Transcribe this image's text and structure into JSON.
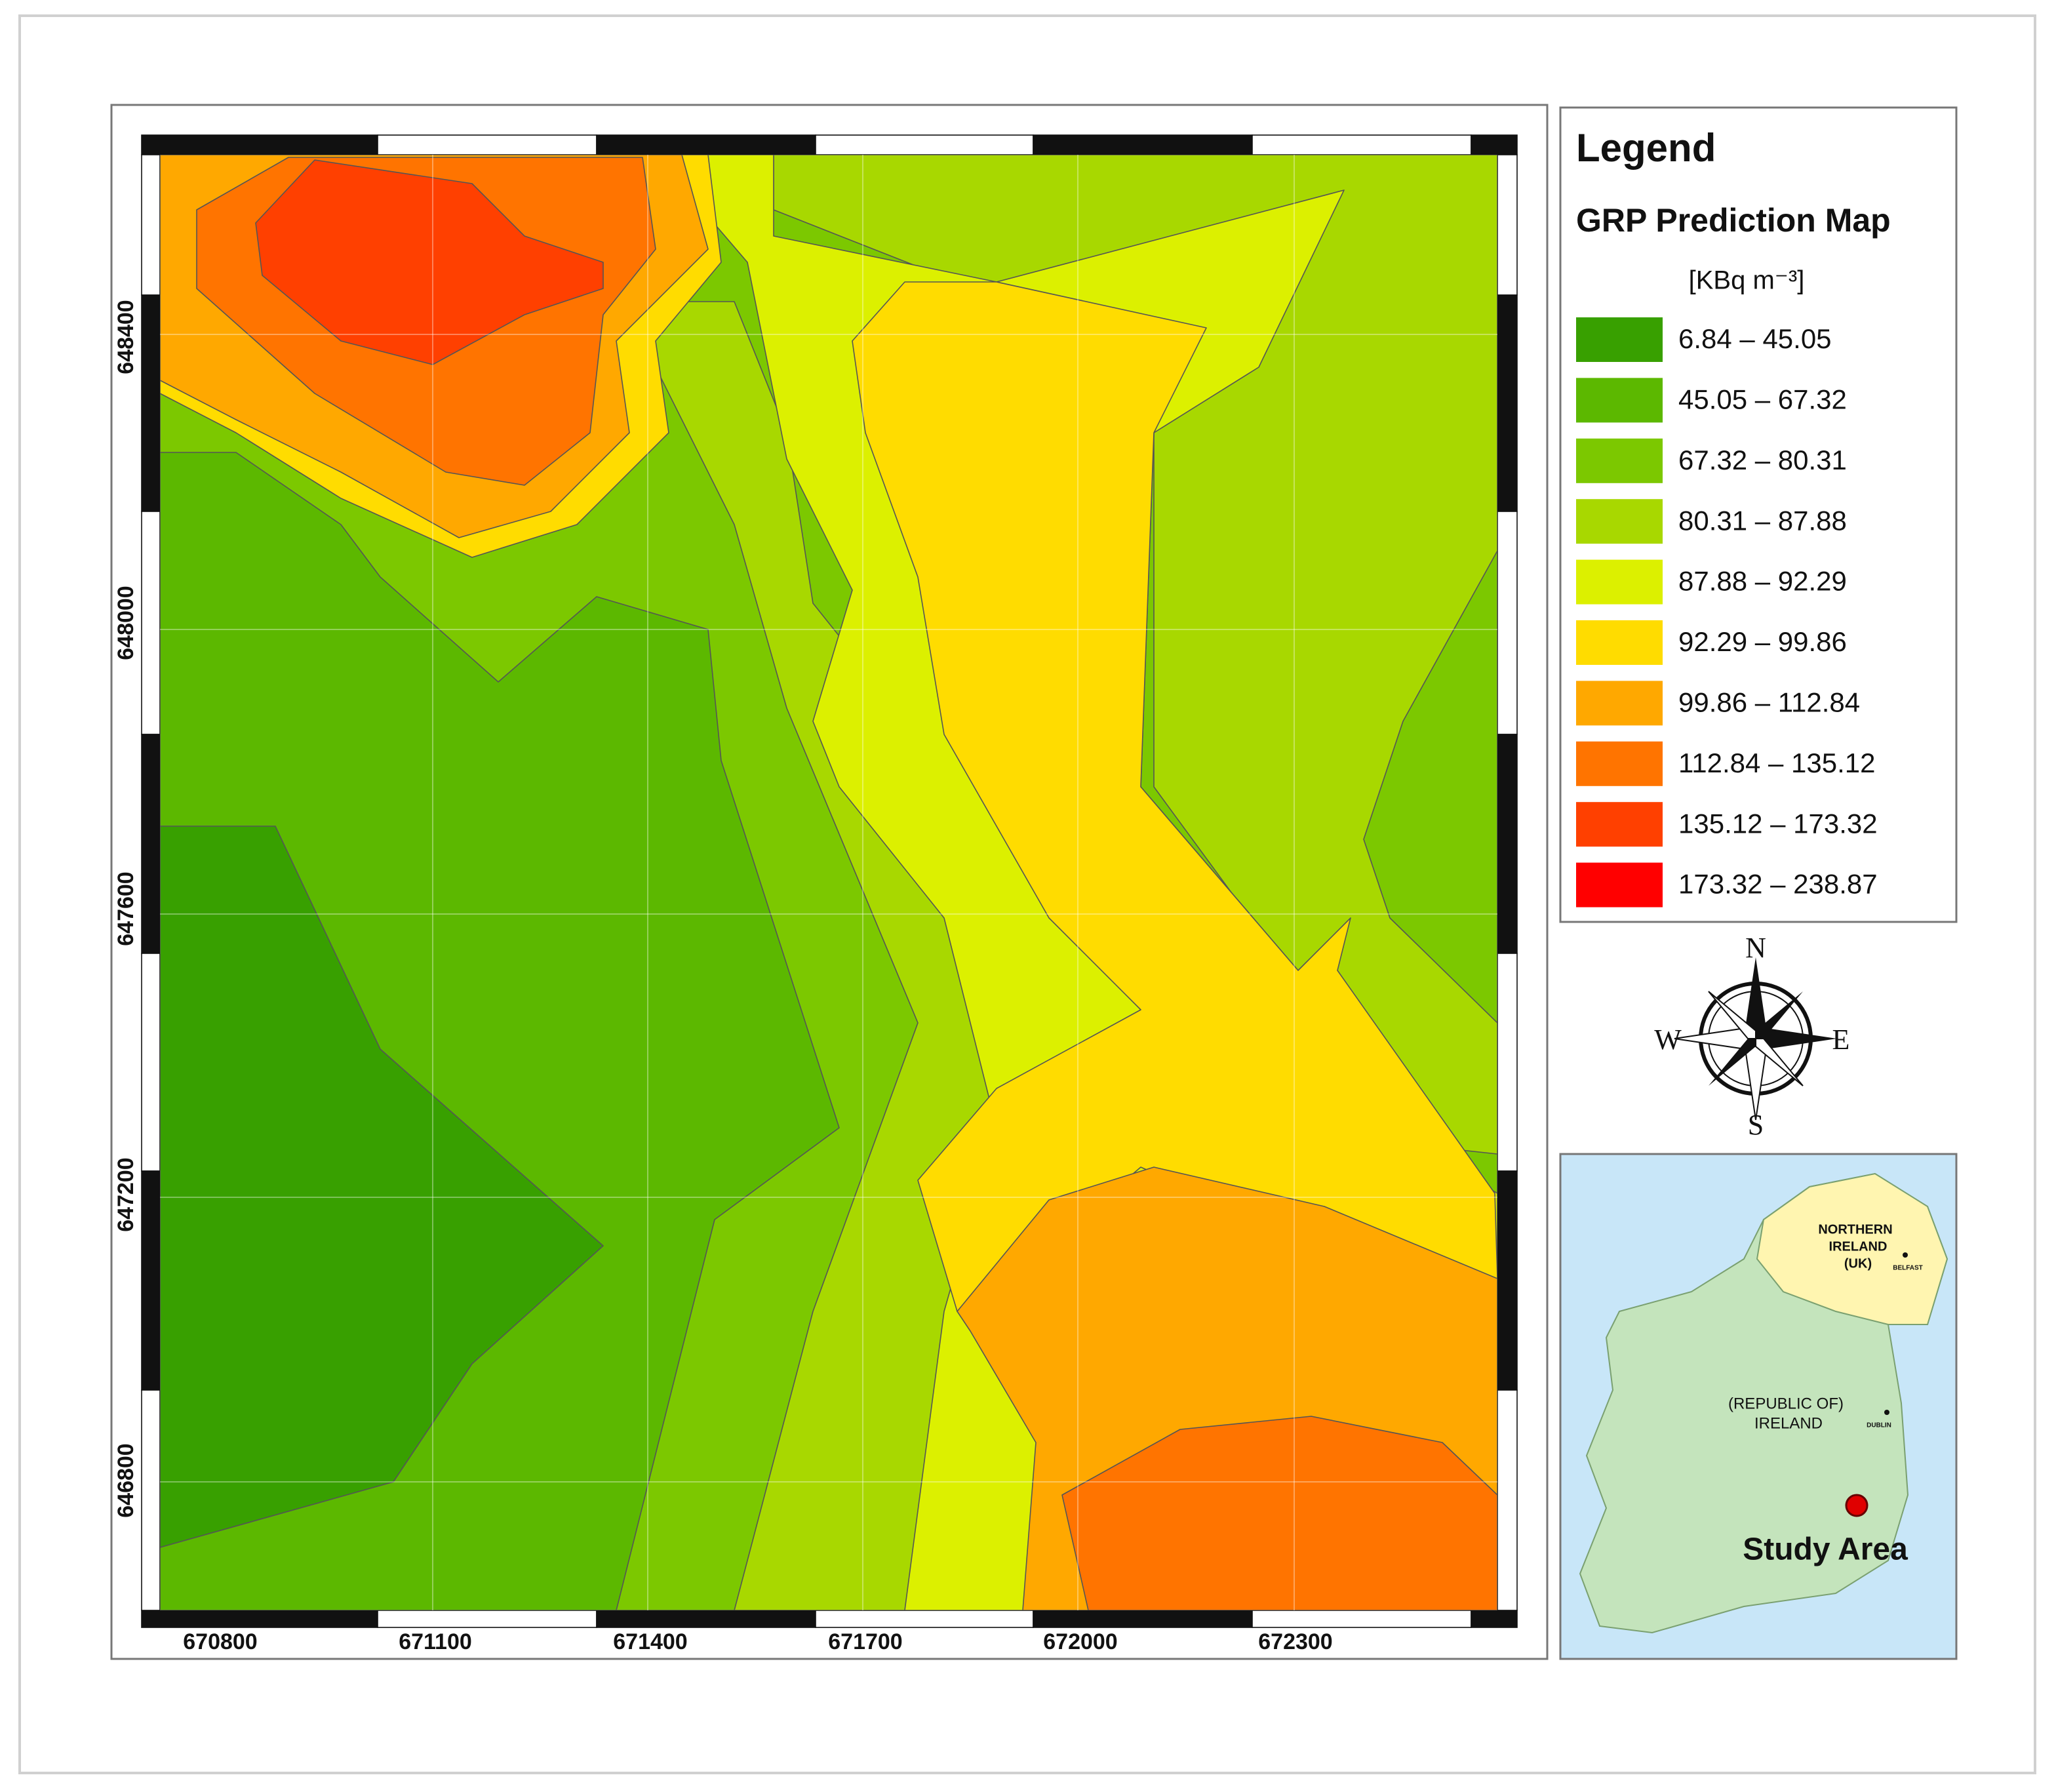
{
  "legend": {
    "title": "Legend",
    "subtitle": "GRP Prediction Map",
    "unit": "[KBq m⁻³]",
    "classes": [
      {
        "label": "6.84 – 45.05",
        "color": "#38a000"
      },
      {
        "label": "45.05 – 67.32",
        "color": "#5cb800"
      },
      {
        "label": "67.32 – 80.31",
        "color": "#7cc800"
      },
      {
        "label": "80.31 – 87.88",
        "color": "#a8d800"
      },
      {
        "label": "87.88 – 92.29",
        "color": "#dcf000"
      },
      {
        "label": "92.29 – 99.86",
        "color": "#ffdc00"
      },
      {
        "label": "99.86 – 112.84",
        "color": "#ffa800"
      },
      {
        "label": "112.84 – 135.12",
        "color": "#ff7400"
      },
      {
        "label": "135.12 – 173.32",
        "color": "#ff4000"
      },
      {
        "label": "173.32 – 238.87",
        "color": "#ff0000"
      }
    ]
  },
  "map": {
    "x_ticks": [
      670800,
      671100,
      671400,
      671700,
      672000,
      672300
    ],
    "y_ticks": [
      648400,
      648000,
      647600,
      647200,
      646800
    ]
  },
  "compass": {
    "n": "N",
    "e": "E",
    "s": "S",
    "w": "W"
  },
  "inset": {
    "northern_ireland": [
      "NORTHERN",
      "IRELAND",
      "(UK)"
    ],
    "belfast": "BELFAST",
    "republic": [
      "(REPUBLIC OF)",
      "IRELAND"
    ],
    "dublin": "DUBLIN",
    "study_area": "Study Area"
  }
}
